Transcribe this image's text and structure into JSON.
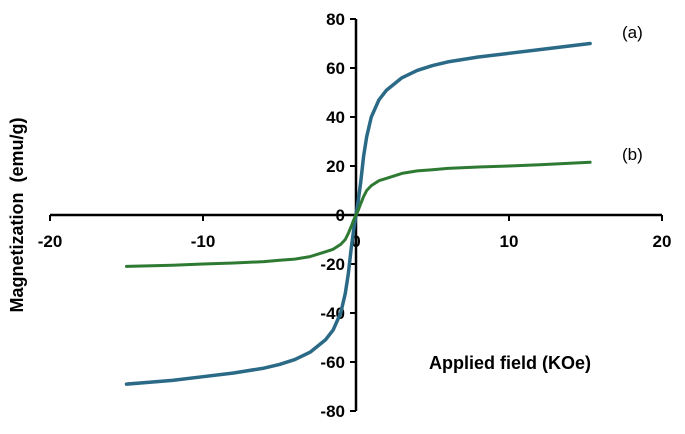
{
  "chart_data": {
    "type": "line",
    "xlabel": "Applied field (KOe)",
    "ylabel": "Magnetization  (emu/g)",
    "xlim": [
      -20,
      20
    ],
    "ylim": [
      -80,
      80
    ],
    "x_ticks": [
      -20,
      -10,
      0,
      10,
      20
    ],
    "y_ticks": [
      -80,
      -60,
      -40,
      -20,
      0,
      20,
      40,
      60,
      80
    ],
    "grid": false,
    "series": [
      {
        "name": "(a)",
        "color": "#2a6a86",
        "x": [
          -15,
          -12,
          -10,
          -8,
          -6,
          -5,
          -4,
          -3,
          -2,
          -1.5,
          -1,
          -0.7,
          -0.5,
          -0.3,
          -0.15,
          0,
          0.15,
          0.3,
          0.5,
          0.7,
          1,
          1.5,
          2,
          3,
          4,
          5,
          6,
          8,
          10,
          12,
          15.3
        ],
        "y": [
          -69,
          -67.5,
          -66,
          -64.5,
          -62.5,
          -61,
          -59,
          -56,
          -51,
          -47,
          -40,
          -32,
          -24,
          -13,
          -6,
          0,
          6,
          13,
          24,
          32,
          40,
          47,
          51,
          56,
          59,
          61,
          62.5,
          64.5,
          66,
          67.5,
          70
        ]
      },
      {
        "name": "(b)",
        "color": "#2e7a33",
        "x": [
          -15,
          -12,
          -10,
          -8,
          -6,
          -5,
          -4,
          -3,
          -2,
          -1.5,
          -1,
          -0.7,
          -0.5,
          -0.3,
          -0.15,
          0,
          0.15,
          0.3,
          0.5,
          0.7,
          1,
          1.5,
          2,
          3,
          4,
          5,
          6,
          8,
          10,
          12,
          15.3
        ],
        "y": [
          -21,
          -20.5,
          -20,
          -19.6,
          -19,
          -18.5,
          -18,
          -17,
          -15,
          -14,
          -12,
          -10,
          -7.5,
          -4.5,
          -2,
          0,
          2,
          4.5,
          7.5,
          10,
          12,
          14,
          15,
          17,
          18,
          18.5,
          19,
          19.6,
          20,
          20.5,
          21.5
        ]
      }
    ]
  }
}
